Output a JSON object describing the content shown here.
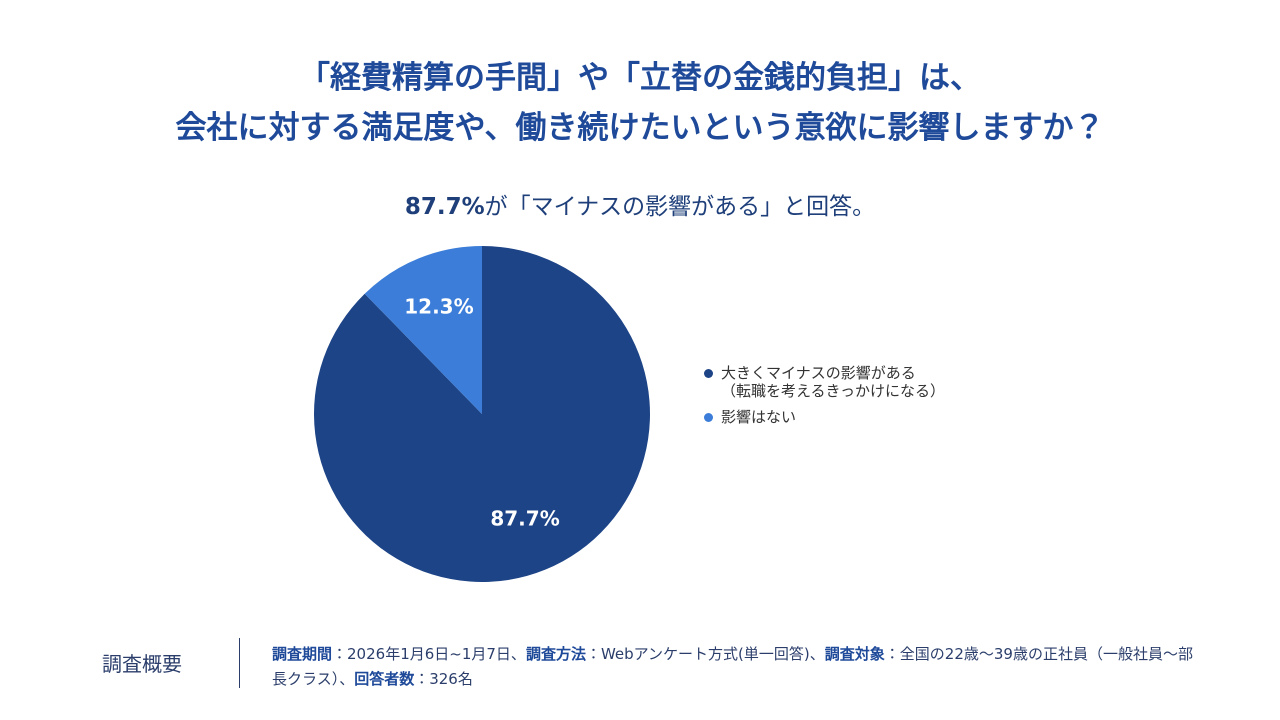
{
  "chart_data": {
    "type": "pie",
    "title": [
      "「経費精算の手間」や「立替の金銭的負担」は、",
      "会社に対する満足度や、働き続けたいという意欲に影響しますか？"
    ],
    "subtitle": [
      "87.7%",
      "が「マイナスの影響がある」と回答。"
    ],
    "categories": [
      "大きくマイナスの影響がある\n（転職を考えるきっかけになる）",
      "影響はない"
    ],
    "values": [
      87.7,
      12.3
    ],
    "value_labels": [
      "87.7%",
      "12.3%"
    ],
    "colors": [
      "#1d4487",
      "#3b7dd8"
    ]
  },
  "footer": {
    "heading": "調査概要",
    "items": [
      {
        "label": "調査期間",
        "text": "：2026年1月6日~1月7日、"
      },
      {
        "label": "調査方法",
        "text": "：Webアンケート方式(単一回答)、"
      },
      {
        "label": "調査対象",
        "text": "：全国の22歳～39歳の正社員（一般社員～部長クラス）、"
      },
      {
        "label": "回答者数",
        "text": "：326名"
      }
    ]
  }
}
